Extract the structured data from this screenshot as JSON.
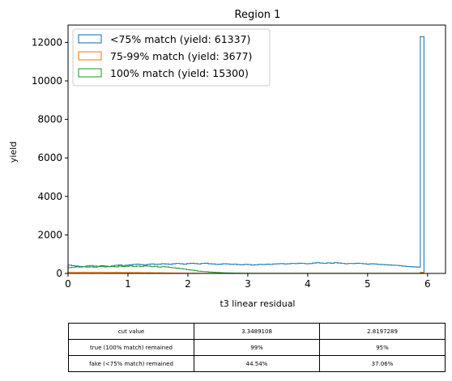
{
  "chart_data": {
    "type": "histogram",
    "title": "Region 1",
    "xlabel": "t3 linear residual",
    "ylabel": "yield",
    "xlim": [
      0,
      6.3
    ],
    "ylim": [
      0,
      12900
    ],
    "x_ticks": [
      "0",
      "1",
      "2",
      "3",
      "4",
      "5",
      "6"
    ],
    "y_ticks": [
      "0",
      "2000",
      "4000",
      "6000",
      "8000",
      "10000",
      "12000"
    ],
    "grid": false,
    "legend_position": "upper-left",
    "histtype": "step",
    "bin_width": 0.06,
    "series": [
      {
        "name": "<75% match (yield: 61337)",
        "color": "#1f77b4",
        "values": [
          430,
          400,
          380,
          360,
          350,
          390,
          410,
          380,
          370,
          400,
          380,
          360,
          390,
          420,
          440,
          410,
          430,
          450,
          470,
          480,
          460,
          440,
          470,
          490,
          470,
          480,
          500,
          490,
          470,
          500,
          520,
          500,
          480,
          510,
          530,
          510,
          490,
          520,
          530,
          500,
          490,
          470,
          480,
          500,
          490,
          470,
          480,
          460,
          450,
          470,
          460,
          440,
          450,
          470,
          460,
          480,
          470,
          490,
          500,
          510,
          490,
          500,
          520,
          510,
          530,
          520,
          500,
          510,
          540,
          560,
          540,
          520,
          550,
          530,
          560,
          540,
          520,
          500,
          520,
          510,
          530,
          520,
          500,
          480,
          500,
          490,
          470,
          460,
          450,
          440,
          430,
          420,
          400,
          380,
          360,
          350,
          340,
          330,
          12300
        ]
      },
      {
        "name": "75-99% match (yield: 3677)",
        "color": "#ff7f0e",
        "values": [
          60,
          55,
          50,
          55,
          60,
          55,
          50,
          55,
          60,
          55,
          50,
          45,
          50,
          55,
          50,
          45,
          50,
          45,
          40,
          45,
          40,
          35,
          40,
          35,
          30,
          35,
          30,
          25,
          25,
          20,
          20,
          15,
          15,
          10,
          10,
          8,
          6,
          5,
          4,
          4,
          3,
          3,
          2,
          2,
          2,
          2,
          1,
          1,
          1,
          1,
          1,
          1,
          1,
          1,
          1,
          1,
          1,
          1,
          1,
          1,
          1,
          1,
          1,
          1,
          1,
          1,
          1,
          1,
          1,
          1,
          1,
          1,
          1,
          1,
          1,
          1,
          1,
          1,
          1,
          1,
          1,
          1,
          1,
          1,
          1,
          1,
          1,
          1,
          1,
          1,
          1,
          1,
          1,
          1,
          1,
          1,
          1,
          1,
          60
        ]
      },
      {
        "name": "100% match (yield: 15300)",
        "color": "#2ca02c",
        "values": [
          300,
          320,
          340,
          330,
          350,
          330,
          340,
          320,
          350,
          360,
          340,
          350,
          360,
          340,
          380,
          360,
          370,
          390,
          360,
          380,
          360,
          390,
          380,
          350,
          370,
          330,
          350,
          340,
          310,
          290,
          270,
          250,
          220,
          190,
          170,
          150,
          120,
          100,
          90,
          70,
          60,
          50,
          40,
          30,
          25,
          20,
          15,
          12,
          10,
          8,
          6,
          5,
          4,
          3,
          3,
          2,
          2,
          2,
          1,
          1,
          1,
          1,
          1,
          1,
          1,
          1,
          1,
          1,
          1,
          1,
          1,
          1,
          1,
          1,
          1,
          1,
          1,
          1,
          1,
          1,
          1,
          1,
          1,
          1,
          1,
          1,
          1,
          1,
          1,
          1,
          1,
          1,
          1,
          1,
          1,
          1,
          1,
          1,
          20
        ]
      }
    ]
  },
  "table": {
    "rows": [
      {
        "label": "cut value",
        "values": [
          "3.3489108",
          "2.8197289"
        ]
      },
      {
        "label": "true (100% match) remained",
        "values": [
          "99%",
          "95%"
        ]
      },
      {
        "label": "fake (<75% match) remained",
        "values": [
          "44.54%",
          "37.06%"
        ]
      }
    ]
  }
}
